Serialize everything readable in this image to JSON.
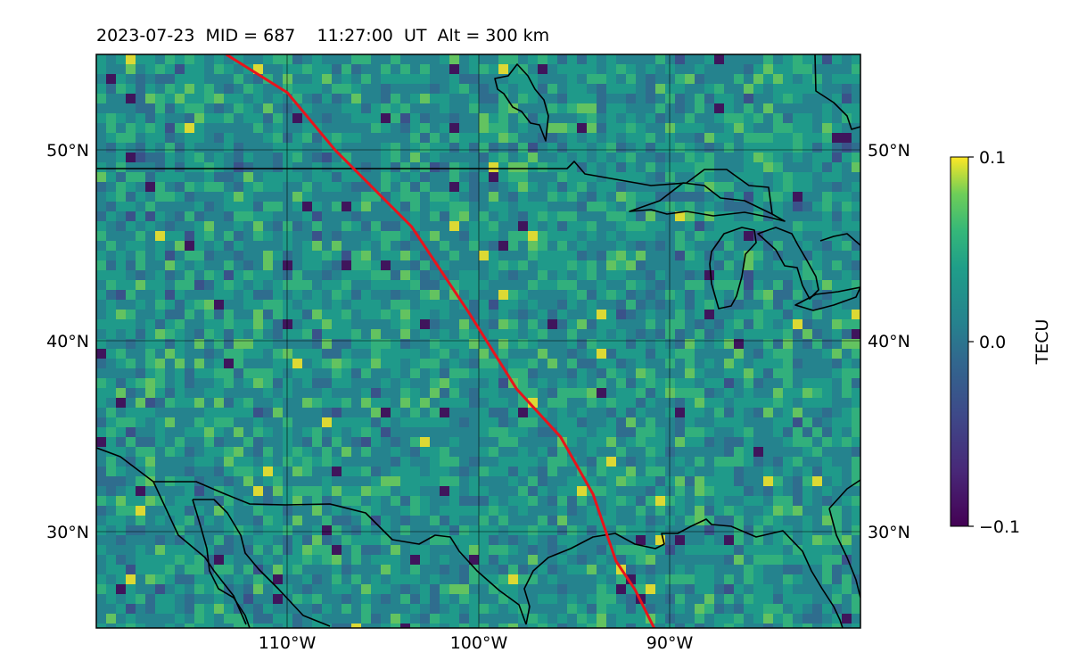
{
  "header": {
    "title": "2023-07-23  MID = 687    11:27:00  UT  Alt = 300 km"
  },
  "map": {
    "projection": "equirectangular",
    "lon_range": [
      -120,
      -80
    ],
    "lat_range": [
      25,
      55
    ],
    "lat_ticks": [
      {
        "value": 30,
        "label": "30°N"
      },
      {
        "value": 40,
        "label": "40°N"
      },
      {
        "value": 50,
        "label": "50°N"
      }
    ],
    "lon_ticks": [
      {
        "value": -110,
        "label": "110°W"
      },
      {
        "value": -100,
        "label": "100°W"
      },
      {
        "value": -90,
        "label": "90°W"
      }
    ],
    "gridlines": true,
    "field": "TEC perturbation",
    "field_colormap": "viridis",
    "terminator_color": "#e8141c",
    "coastline_color": "#000000",
    "terminator_track": [
      [
        -113.2,
        55.0
      ],
      [
        -110.0,
        53.0
      ],
      [
        -107.5,
        50.0
      ],
      [
        -103.5,
        46.0
      ],
      [
        -100.5,
        41.5
      ],
      [
        -98.0,
        37.5
      ],
      [
        -95.7,
        35.0
      ],
      [
        -94.0,
        32.0
      ],
      [
        -92.8,
        28.5
      ],
      [
        -91.8,
        27.0
      ],
      [
        -90.8,
        25.0
      ]
    ]
  },
  "colorbar": {
    "label": "TECU",
    "min": -0.1,
    "max": 0.1,
    "ticks": [
      {
        "value": 0.1,
        "label": "0.1"
      },
      {
        "value": 0.0,
        "label": "0.0"
      },
      {
        "value": -0.1,
        "label": "−0.1"
      }
    ]
  }
}
